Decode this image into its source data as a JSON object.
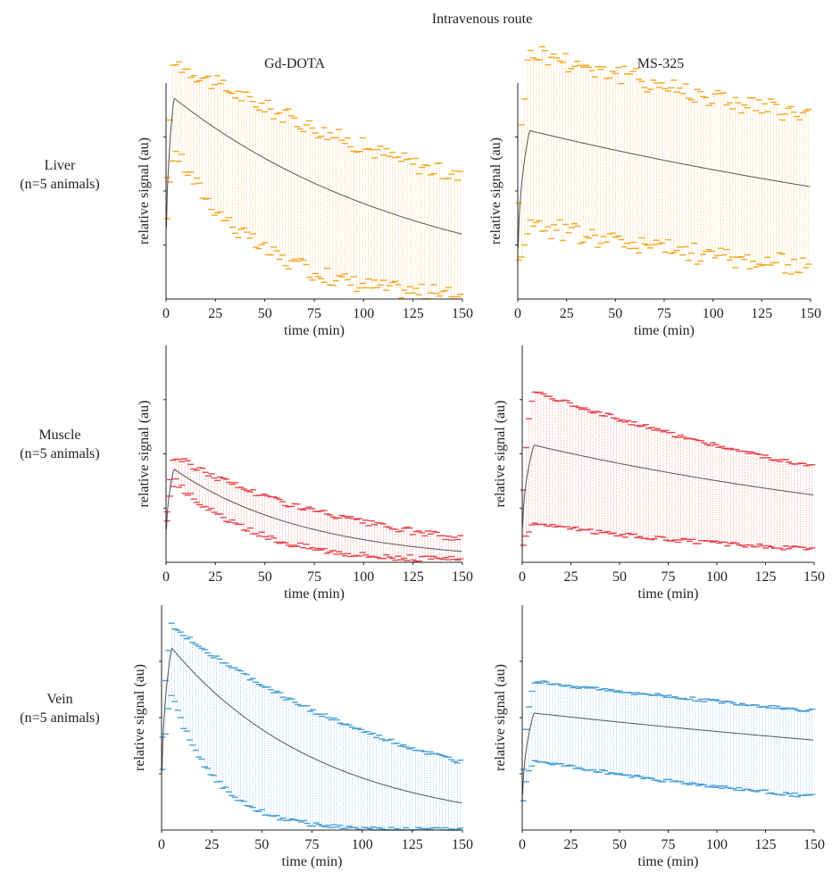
{
  "figure": {
    "title": "Intravenous route",
    "columns": [
      "Gd-DOTA",
      "MS-325"
    ],
    "rows": [
      {
        "label_line1": "Liver",
        "label_line2": "(n=5 animals)"
      },
      {
        "label_line1": "Muscle",
        "label_line2": "(n=5 animals)"
      },
      {
        "label_line1": "Vein",
        "label_line2": "(n=5 animals)"
      }
    ],
    "xlabel": "time (min)",
    "ylabel": "relative signal (au)",
    "xticks": [
      0,
      25,
      50,
      75,
      100,
      125,
      150
    ],
    "colors": {
      "liver": "#f5a623",
      "muscle": "#e8474f",
      "vein": "#4a9fd8",
      "mean_line": "#555555",
      "axis": "#231f20"
    }
  },
  "chart_data": [
    {
      "type": "line",
      "row": "Liver",
      "agent": "Gd-DOTA",
      "xlim": [
        0,
        150
      ],
      "ylim": [
        0,
        1
      ],
      "color": "#f5a623",
      "peak_time": 4,
      "peak": 0.93,
      "end": 0.3,
      "upper_peak": 1.1,
      "upper_end": 0.56,
      "lower_peak": 0.7,
      "lower_end": 0.02,
      "noise": 0.04
    },
    {
      "type": "line",
      "row": "Liver",
      "agent": "MS-325",
      "xlim": [
        0,
        150
      ],
      "ylim": [
        0,
        1
      ],
      "color": "#f5a623",
      "peak_time": 6,
      "peak": 0.78,
      "end": 0.52,
      "upper_peak": 1.15,
      "upper_end": 0.84,
      "lower_peak": 0.35,
      "lower_end": 0.15,
      "noise": 0.05
    },
    {
      "type": "line",
      "row": "Muscle",
      "agent": "Gd-DOTA",
      "xlim": [
        0,
        150
      ],
      "ylim": [
        0,
        1
      ],
      "color": "#e8474f",
      "peak_time": 4,
      "peak": 0.43,
      "end": 0.05,
      "upper_peak": 0.49,
      "upper_end": 0.11,
      "lower_peak": 0.38,
      "lower_end": 0.01,
      "noise": 0.015
    },
    {
      "type": "line",
      "row": "Muscle",
      "agent": "MS-325",
      "xlim": [
        0,
        150
      ],
      "ylim": [
        0,
        1
      ],
      "color": "#e8474f",
      "peak_time": 6,
      "peak": 0.54,
      "end": 0.31,
      "upper_peak": 0.79,
      "upper_end": 0.44,
      "lower_peak": 0.18,
      "lower_end": 0.06,
      "noise": 0.01
    },
    {
      "type": "line",
      "row": "Vein",
      "agent": "Gd-DOTA",
      "xlim": [
        0,
        150
      ],
      "ylim": [
        0,
        1
      ],
      "color": "#4a9fd8",
      "peak_time": 5,
      "peak": 0.81,
      "end": 0.12,
      "upper_peak": 0.91,
      "upper_end": 0.3,
      "lower_peak": 0.6,
      "lower_end": 0.0,
      "noise": 0.01
    },
    {
      "type": "line",
      "row": "Vein",
      "agent": "MS-325",
      "xlim": [
        0,
        150
      ],
      "ylim": [
        0,
        1
      ],
      "color": "#4a9fd8",
      "peak_time": 6,
      "peak": 0.52,
      "end": 0.4,
      "upper_peak": 0.66,
      "upper_end": 0.53,
      "lower_peak": 0.31,
      "lower_end": 0.15,
      "noise": 0.008
    }
  ]
}
